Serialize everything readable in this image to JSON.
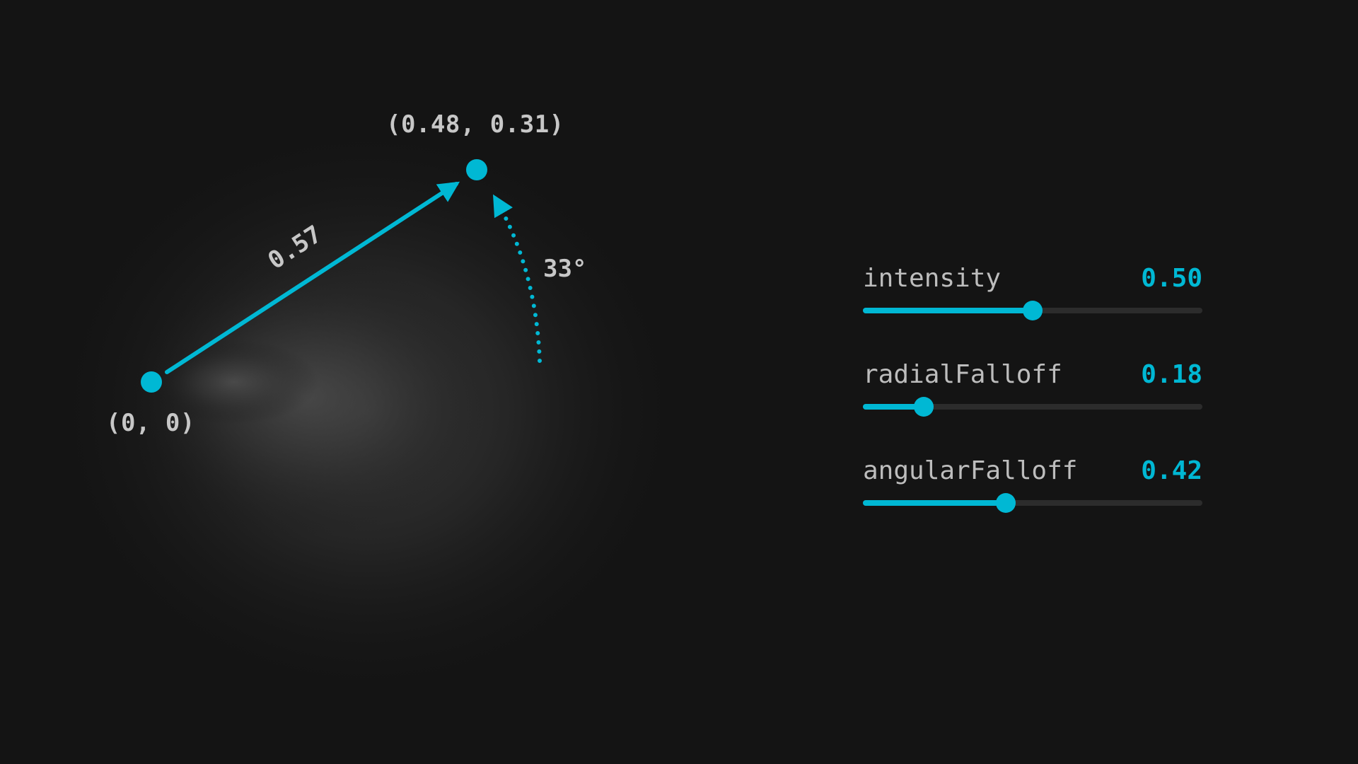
{
  "colors": {
    "background": "#141414",
    "accent": "#00b8d4",
    "label": "#c7c7c7",
    "track": "#2c2c2c"
  },
  "diagram": {
    "origin_label": "(0, 0)",
    "target_label": "(0.48, 0.31)",
    "length_label": "0.57",
    "angle_label": "33°"
  },
  "controls": [
    {
      "name": "intensity",
      "value_label": "0.50",
      "value": 0.5
    },
    {
      "name": "radialFalloff",
      "value_label": "0.18",
      "value": 0.18
    },
    {
      "name": "angularFalloff",
      "value_label": "0.42",
      "value": 0.42
    }
  ]
}
